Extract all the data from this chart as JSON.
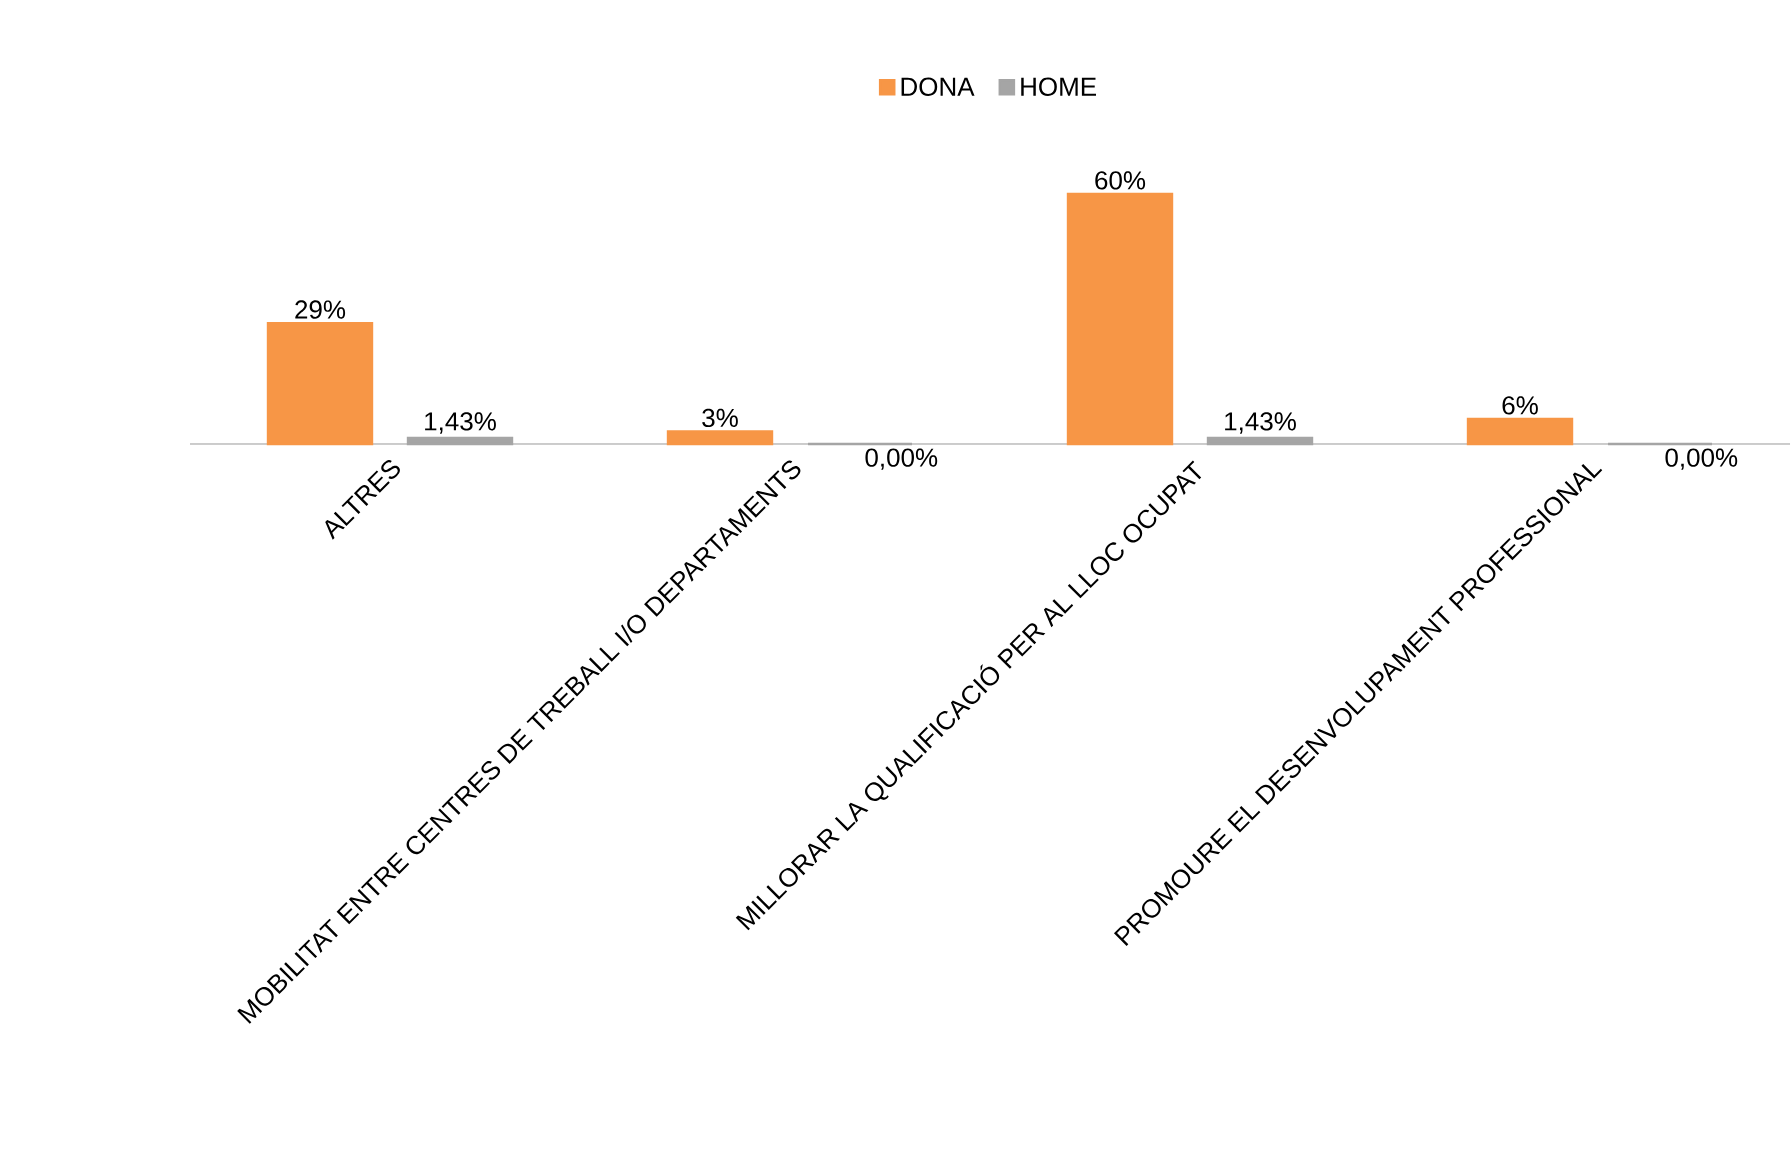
{
  "chart_data": {
    "type": "bar",
    "categories": [
      "ALTRES",
      "MOBILITAT ENTRE CENTRES DE TREBALL I/O DEPARTAMENTS",
      "MILLORAR LA QUALIFICACIÓ PER AL LLOC OCUPAT",
      "PROMOURE EL DESENVOLUPAMENT PROFESSIONAL"
    ],
    "series": [
      {
        "name": "DONA",
        "color": "#f79646",
        "values": [
          29,
          3,
          60,
          6
        ],
        "value_labels": [
          "29%",
          "3%",
          "60%",
          "6%"
        ]
      },
      {
        "name": "HOME",
        "color": "#a5a5a5",
        "values": [
          1.43,
          0,
          1.43,
          0
        ],
        "value_labels": [
          "1,43%",
          "0,00%",
          "1,43%",
          "0,00%"
        ]
      }
    ],
    "legend": "top",
    "tick_labels": "x"
  }
}
